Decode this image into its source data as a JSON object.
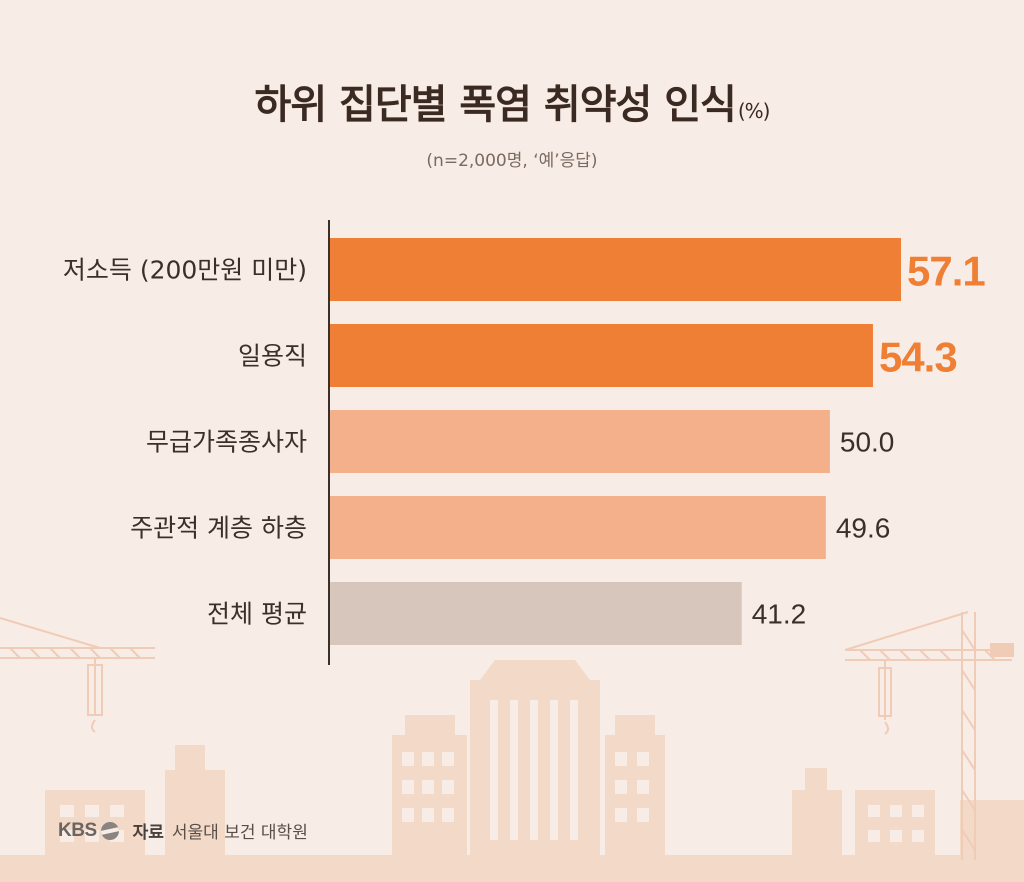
{
  "title": "하위 집단별 폭염 취약성 인식",
  "title_unit": "(%)",
  "subtitle": "(n=2,000명, ‘예’응답)",
  "source": {
    "brand": "KBS",
    "label": "자료",
    "text": "서울대 보건 대학원"
  },
  "colors": {
    "highlight": "#ef7f34",
    "light": "#f4b08a",
    "average": "#d6c6bb",
    "highlight_text": "#ef7f34",
    "normal_text": "#3a302a"
  },
  "chart_data": {
    "type": "bar",
    "orientation": "horizontal",
    "categories": [
      "저소득 (200만원 미만)",
      "일용직",
      "무급가족종사자",
      "주관적 계층 하층",
      "전체 평균"
    ],
    "values": [
      57.1,
      54.3,
      50.0,
      49.6,
      41.2
    ],
    "value_labels": [
      "57.1",
      "54.3",
      "50.0",
      "49.6",
      "41.2"
    ],
    "groups": [
      "highlight",
      "highlight",
      "light",
      "light",
      "average"
    ],
    "title": "하위 집단별 폭염 취약성 인식",
    "xlabel": "",
    "ylabel": "",
    "xlim": [
      0,
      57.1
    ],
    "grid": false,
    "legend": "none"
  }
}
